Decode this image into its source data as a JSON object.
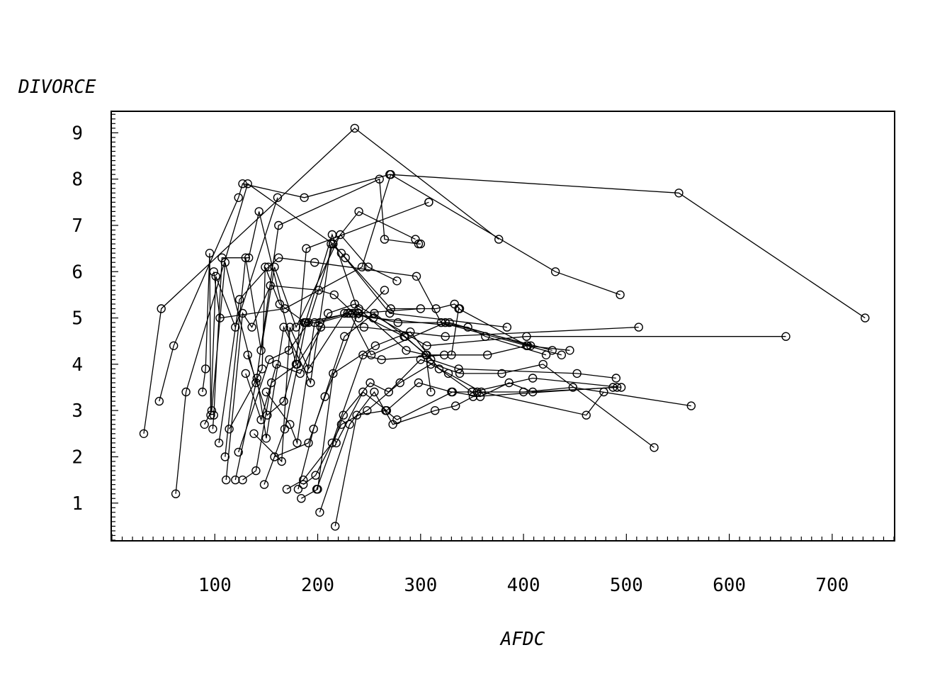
{
  "chart_data": {
    "type": "line",
    "xlabel": "AFDC",
    "ylabel": "DIVORCE",
    "xlim": [
      0,
      760
    ],
    "ylim": [
      0.2,
      9.45
    ],
    "x_ticks": [
      100,
      200,
      300,
      400,
      500,
      600,
      700
    ],
    "y_ticks": [
      1,
      2,
      3,
      4,
      5,
      6,
      7,
      8,
      9
    ],
    "marker": "circle",
    "line_color": "#000000",
    "grid": false,
    "legend": "none",
    "series": [
      {
        "x": [
          31,
          48,
          236,
          376
        ],
        "y": [
          2.5,
          5.2,
          9.1,
          6.7
        ]
      },
      {
        "x": [
          46,
          60,
          123,
          127,
          187,
          270,
          551,
          732
        ],
        "y": [
          3.2,
          4.4,
          7.6,
          7.9,
          7.6,
          8.1,
          7.7,
          5.0
        ]
      },
      {
        "x": [
          62,
          72,
          132,
          215,
          240,
          295
        ],
        "y": [
          1.2,
          3.4,
          7.9,
          6.6,
          7.3,
          6.7
        ]
      },
      {
        "x": [
          88,
          91,
          95,
          96,
          101,
          120,
          161
        ],
        "y": [
          3.4,
          3.9,
          6.4,
          2.9,
          5.9,
          4.8,
          7.6
        ]
      },
      {
        "x": [
          90,
          97,
          110,
          140,
          162,
          260,
          265,
          298,
          300
        ],
        "y": [
          2.7,
          3.0,
          6.2,
          3.6,
          7.0,
          8.0,
          6.7,
          6.6,
          6.6
        ]
      },
      {
        "x": [
          98,
          99,
          107,
          133,
          143,
          179,
          189,
          308,
          308
        ],
        "y": [
          2.6,
          2.9,
          6.3,
          6.3,
          7.3,
          4.0,
          6.5,
          7.5,
          7.5
        ]
      },
      {
        "x": [
          99,
          105,
          168,
          243,
          271,
          431,
          494
        ],
        "y": [
          6.0,
          5.0,
          5.2,
          6.1,
          8.1,
          6.0,
          5.5
        ]
      },
      {
        "x": [
          104,
          124,
          152,
          162,
          197,
          296,
          320,
          437
        ],
        "y": [
          2.3,
          5.4,
          6.1,
          6.3,
          6.2,
          5.9,
          4.9,
          4.2
        ]
      },
      {
        "x": [
          110,
          130,
          145,
          158,
          179,
          222,
          249,
          277
        ],
        "y": [
          2.0,
          6.3,
          4.3,
          6.1,
          4.8,
          6.8,
          6.1,
          5.8
        ]
      },
      {
        "x": [
          111,
          127,
          136,
          154,
          201,
          216,
          240,
          265
        ],
        "y": [
          1.5,
          5.1,
          4.8,
          5.7,
          5.6,
          5.5,
          5.0,
          5.6
        ]
      },
      {
        "x": [
          114,
          146,
          149,
          163,
          188,
          214,
          240,
          300
        ],
        "y": [
          2.6,
          3.9,
          6.1,
          5.3,
          4.9,
          6.8,
          5.1,
          5.2
        ]
      },
      {
        "x": [
          120,
          141,
          150,
          167,
          193,
          213,
          223,
          270,
          384
        ],
        "y": [
          1.5,
          3.7,
          2.4,
          4.8,
          3.6,
          6.6,
          6.4,
          5.1,
          4.8
        ]
      },
      {
        "x": [
          123,
          153,
          172,
          191,
          215,
          227,
          271,
          315,
          333,
          338
        ],
        "y": [
          2.1,
          4.1,
          4.3,
          4.9,
          6.6,
          6.3,
          5.2,
          5.2,
          5.3,
          5.2
        ]
      },
      {
        "x": [
          127,
          140,
          155,
          180,
          203,
          245,
          324,
          512
        ],
        "y": [
          1.5,
          1.7,
          3.6,
          4.0,
          4.8,
          4.8,
          4.6,
          4.8
        ]
      },
      {
        "x": [
          130,
          145,
          160,
          183,
          210,
          236,
          306,
          403,
          655
        ],
        "y": [
          3.8,
          2.8,
          4.0,
          3.8,
          5.1,
          5.3,
          4.4,
          4.6,
          4.6
        ]
      },
      {
        "x": [
          132,
          151,
          167,
          187,
          231,
          252,
          324,
          428
        ],
        "y": [
          4.2,
          2.9,
          3.2,
          4.9,
          5.1,
          4.2,
          4.9,
          4.3
        ]
      },
      {
        "x": [
          138,
          165,
          173,
          191,
          226,
          240,
          286,
          305,
          310
        ],
        "y": [
          2.5,
          1.9,
          4.8,
          3.9,
          5.1,
          5.2,
          4.3,
          4.2,
          3.4
        ]
      },
      {
        "x": [
          148,
          168,
          189,
          202,
          234,
          278,
          328,
          407
        ],
        "y": [
          1.4,
          2.6,
          4.9,
          4.9,
          5.1,
          4.9,
          4.9,
          4.4
        ]
      },
      {
        "x": [
          150,
          173,
          180,
          197,
          229,
          254,
          346,
          363,
          422
        ],
        "y": [
          3.4,
          2.7,
          2.3,
          4.9,
          5.1,
          5.0,
          4.8,
          4.6,
          4.2
        ]
      },
      {
        "x": [
          158,
          191,
          207,
          239,
          284,
          306,
          330,
          337,
          404
        ],
        "y": [
          2.0,
          2.3,
          3.3,
          5.1,
          4.6,
          4.2,
          4.2,
          5.2,
          4.4
        ]
      },
      {
        "x": [
          170,
          186,
          214,
          244,
          262,
          323,
          365,
          403,
          445
        ],
        "y": [
          1.3,
          1.5,
          2.3,
          4.2,
          4.1,
          4.2,
          4.2,
          4.4,
          4.3
        ]
      },
      {
        "x": [
          181,
          196,
          226,
          255,
          285,
          310,
          337,
          452,
          490
        ],
        "y": [
          1.3,
          2.6,
          4.6,
          5.1,
          4.6,
          4.1,
          3.9,
          3.8,
          3.7
        ]
      },
      {
        "x": [
          184,
          200,
          215,
          256,
          290,
          318,
          350,
          409,
          495
        ],
        "y": [
          1.1,
          1.3,
          3.8,
          4.4,
          4.7,
          3.9,
          3.4,
          3.7,
          3.5
        ]
      },
      {
        "x": [
          186,
          198,
          223,
          248,
          280,
          310,
          327,
          359,
          461,
          478
        ],
        "y": [
          1.4,
          1.6,
          2.7,
          3.0,
          3.6,
          4.0,
          3.8,
          3.4,
          2.9,
          3.4
        ]
      },
      {
        "x": [
          199,
          225,
          251,
          269,
          300,
          338,
          379,
          419,
          527
        ],
        "y": [
          1.3,
          2.9,
          3.6,
          3.4,
          4.1,
          3.8,
          3.8,
          4.0,
          2.2
        ]
      },
      {
        "x": [
          202,
          231,
          255,
          273,
          314,
          334,
          351,
          487
        ],
        "y": [
          0.8,
          2.7,
          3.4,
          2.7,
          3.0,
          3.1,
          3.3,
          3.5
        ]
      },
      {
        "x": [
          217,
          238,
          266,
          277,
          331,
          358,
          386,
          409,
          491
        ],
        "y": [
          0.5,
          2.9,
          3.0,
          2.8,
          3.4,
          3.3,
          3.6,
          3.4,
          3.5
        ]
      },
      {
        "x": [
          218,
          244,
          267,
          298,
          330,
          355,
          400,
          448,
          563
        ],
        "y": [
          2.3,
          3.4,
          3.0,
          3.6,
          3.4,
          3.4,
          3.4,
          3.5,
          3.1
        ]
      }
    ]
  }
}
